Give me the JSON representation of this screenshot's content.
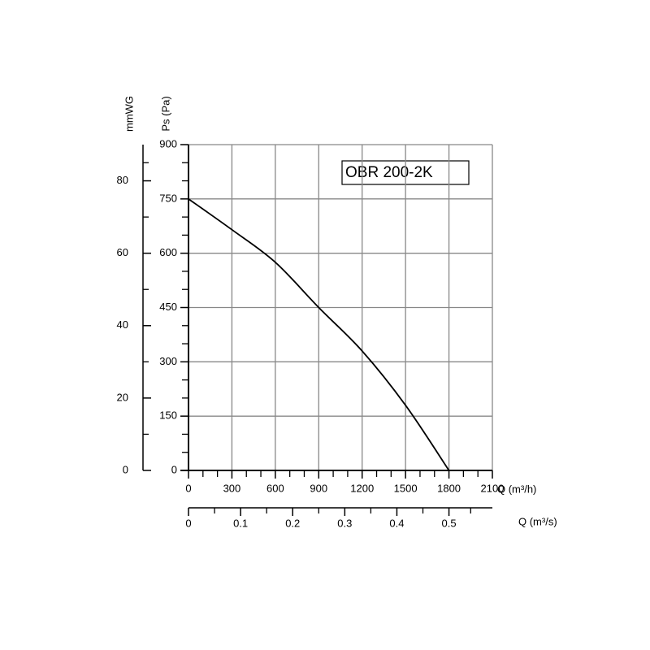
{
  "chart_data": {
    "type": "line",
    "title": "OBR 200-2K",
    "x": [
      0,
      300,
      600,
      900,
      1200,
      1500,
      1800
    ],
    "series": [
      {
        "name": "OBR 200-2K",
        "color": "#000000",
        "values": [
          750,
          665,
          575,
          450,
          330,
          180,
          0
        ]
      }
    ],
    "xlim": [
      0,
      2100
    ],
    "xticks": [
      0,
      300,
      600,
      900,
      1200,
      1500,
      1800,
      2100
    ],
    "ylim": [
      0,
      900
    ],
    "yticks": [
      0,
      150,
      300,
      450,
      600,
      750,
      900
    ],
    "y2lim": [
      0,
      90
    ],
    "y2ticks": [
      0,
      20,
      40,
      60,
      80
    ],
    "x2lim": [
      0,
      0.58333
    ],
    "x2ticks": [
      0,
      0.1,
      0.2,
      0.3,
      0.4,
      0.5
    ],
    "xlabel": "Q (m³/h)",
    "x2label": "Q (m³/s)",
    "ylabel": "Ps (Pa)",
    "y2label": "mmWG",
    "grid": true
  }
}
